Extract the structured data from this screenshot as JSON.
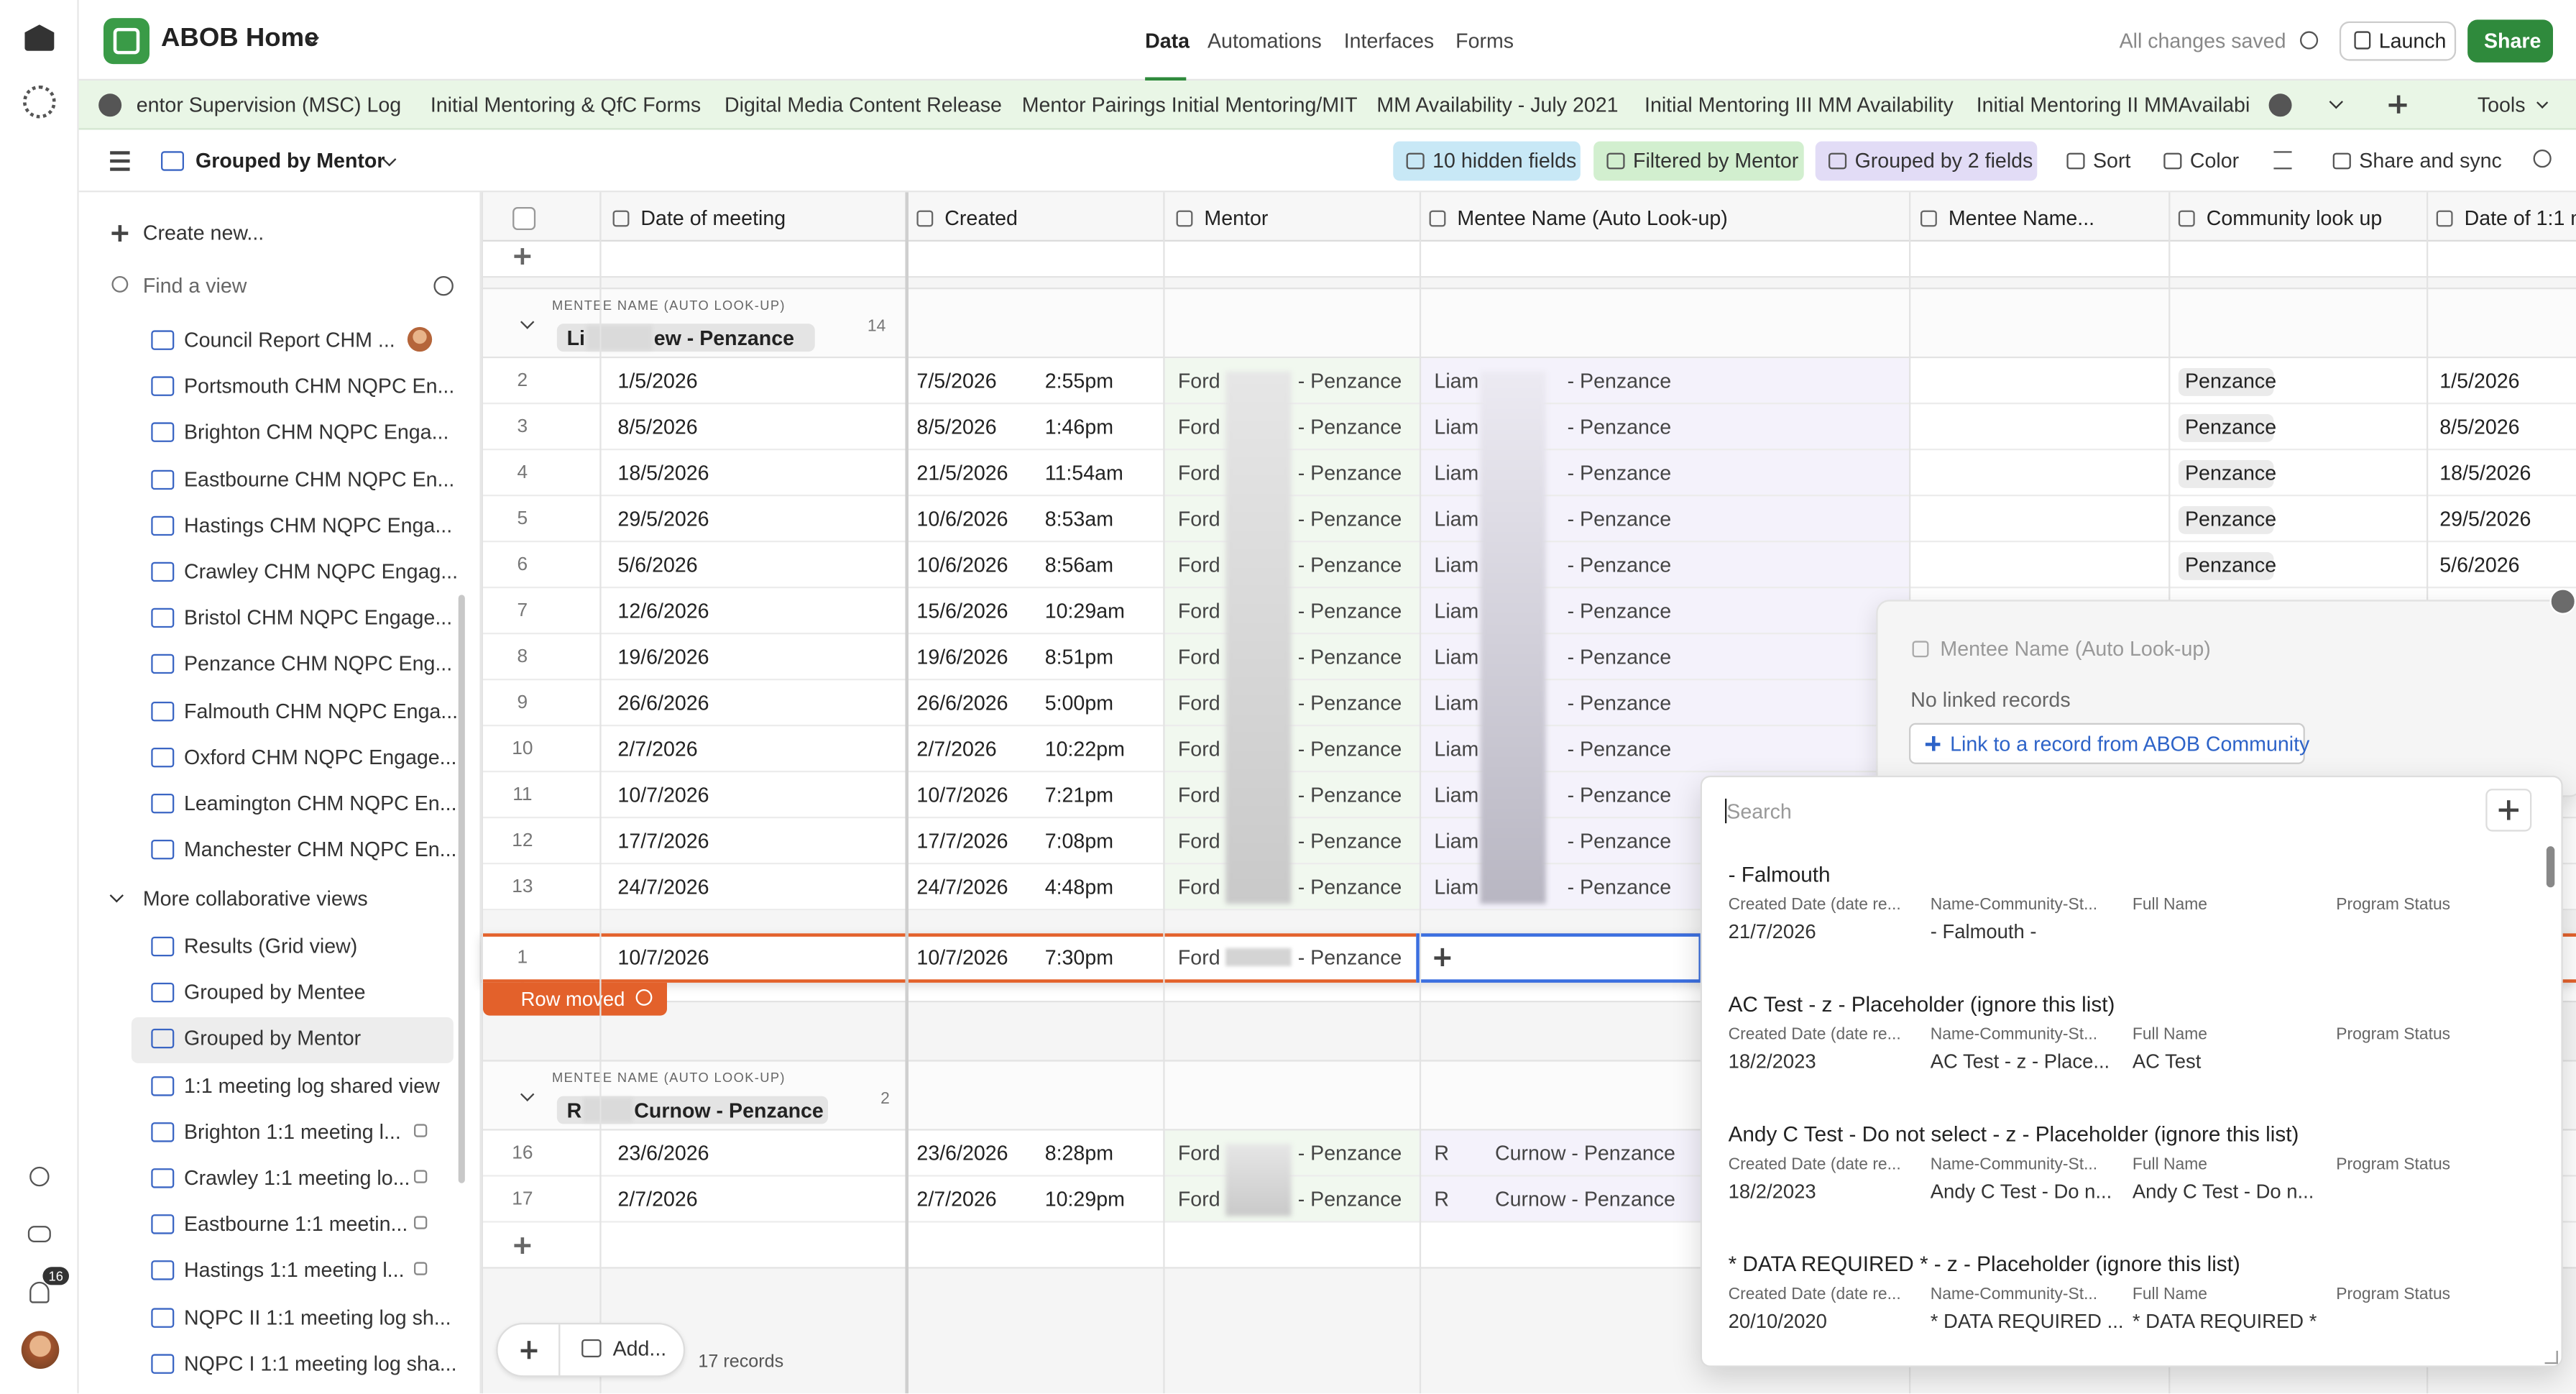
{
  "header": {
    "base_name": "ABOB Home",
    "nav": [
      "Data",
      "Automations",
      "Interfaces",
      "Forms"
    ],
    "status": "All changes saved",
    "launch": "Launch",
    "share": "Share"
  },
  "tables_bar": {
    "tabs": [
      "entor Supervision (MSC) Log",
      "Initial Mentoring & QfC Forms",
      "Digital Media Content Release",
      "Mentor Pairings Initial Mentoring/MIT",
      "MM Availability - July 2021",
      "Initial Mentoring III MM Availability",
      "Initial Mentoring II MMAvailabilit"
    ],
    "tools": "Tools"
  },
  "toolbar": {
    "view": "Grouped by Mentor",
    "buttons": [
      "10 hidden fields",
      "Filtered by Mentor",
      "Grouped by 2 fields",
      "Sort",
      "Color",
      "Share and sync"
    ]
  },
  "left_rail": {
    "notifications": "16"
  },
  "sidebar": {
    "create": "Create new...",
    "find": "Find a view",
    "views": [
      "Council Report CHM ...",
      "Portsmouth CHM NQPC En...",
      "Brighton CHM NQPC Enga...",
      "Eastbourne CHM NQPC En...",
      "Hastings CHM NQPC Enga...",
      "Crawley CHM NQPC Engag...",
      "Bristol CHM NQPC Engage...",
      "Penzance CHM NQPC Eng...",
      "Falmouth CHM NQPC Enga...",
      "Oxford CHM NQPC Engage...",
      "Leamington CHM NQPC En...",
      "Manchester CHM NQPC En..."
    ],
    "section": "More collaborative views",
    "more_views": [
      "Results (Grid view)",
      "Grouped by Mentee",
      "Grouped by Mentor",
      "1:1 meeting log shared view",
      "Brighton 1:1 meeting l...",
      "Crawley 1:1 meeting lo...",
      "Eastbourne 1:1 meetin...",
      "Hastings 1:1 meeting l...",
      "NQPC II 1:1 meeting log sh...",
      "NQPC I 1:1 meeting log sha..."
    ]
  },
  "grid": {
    "columns": [
      "Date of meeting",
      "Created",
      "Mentor",
      "Mentee Name (Auto Look-up)",
      "Mentee Name...",
      "Community look up",
      "Date of 1:1 m"
    ],
    "groups": [
      {
        "label": "MENTEE NAME (AUTO LOOK-UP)",
        "name": [
          "Li",
          "ew - Penzance"
        ],
        "count": "14",
        "rows": [
          {
            "num": "2",
            "date": "1/5/2026",
            "created_date": "7/5/2026",
            "created_time": "2:55pm",
            "mentor": [
              "Ford",
              "- Penzance"
            ],
            "mentee": [
              "Liam",
              "- Penzance"
            ],
            "community": "Penzance",
            "date_1to1": "1/5/2026"
          },
          {
            "num": "3",
            "date": "8/5/2026",
            "created_date": "8/5/2026",
            "created_time": "1:46pm",
            "mentor": [
              "Ford",
              "- Penzance"
            ],
            "mentee": [
              "Liam",
              "- Penzance"
            ],
            "community": "Penzance",
            "date_1to1": "8/5/2026"
          },
          {
            "num": "4",
            "date": "18/5/2026",
            "created_date": "21/5/2026",
            "created_time": "11:54am",
            "mentor": [
              "Ford",
              "- Penzance"
            ],
            "mentee": [
              "Liam",
              "- Penzance"
            ],
            "community": "Penzance",
            "date_1to1": "18/5/2026"
          },
          {
            "num": "5",
            "date": "29/5/2026",
            "created_date": "10/6/2026",
            "created_time": "8:53am",
            "mentor": [
              "Ford",
              "- Penzance"
            ],
            "mentee": [
              "Liam",
              "- Penzance"
            ],
            "community": "Penzance",
            "date_1to1": "29/5/2026"
          },
          {
            "num": "6",
            "date": "5/6/2026",
            "created_date": "10/6/2026",
            "created_time": "8:56am",
            "mentor": [
              "Ford",
              "- Penzance"
            ],
            "mentee": [
              "Liam",
              "- Penzance"
            ],
            "community": "Penzance",
            "date_1to1": "5/6/2026"
          },
          {
            "num": "7",
            "date": "12/6/2026",
            "created_date": "15/6/2026",
            "created_time": "10:29am",
            "mentor": [
              "Ford",
              "- Penzance"
            ],
            "mentee": [
              "Liam",
              "- Penzance"
            ]
          },
          {
            "num": "8",
            "date": "19/6/2026",
            "created_date": "19/6/2026",
            "created_time": "8:51pm",
            "mentor": [
              "Ford",
              "- Penzance"
            ],
            "mentee": [
              "Liam",
              "- Penzance"
            ]
          },
          {
            "num": "9",
            "date": "26/6/2026",
            "created_date": "26/6/2026",
            "created_time": "5:00pm",
            "mentor": [
              "Ford",
              "- Penzance"
            ],
            "mentee": [
              "Liam",
              "- Penzance"
            ]
          },
          {
            "num": "10",
            "date": "2/7/2026",
            "created_date": "2/7/2026",
            "created_time": "10:22pm",
            "mentor": [
              "Ford",
              "- Penzance"
            ],
            "mentee": [
              "Liam",
              "- Penzance"
            ]
          },
          {
            "num": "11",
            "date": "10/7/2026",
            "created_date": "10/7/2026",
            "created_time": "7:21pm",
            "mentor": [
              "Ford",
              "- Penzance"
            ],
            "mentee": [
              "Liam",
              "- Penzance"
            ]
          },
          {
            "num": "12",
            "date": "17/7/2026",
            "created_date": "17/7/2026",
            "created_time": "7:08pm",
            "mentor": [
              "Ford",
              "- Penzance"
            ],
            "mentee": [
              "Liam",
              "- Penzance"
            ]
          },
          {
            "num": "13",
            "date": "24/7/2026",
            "created_date": "24/7/2026",
            "created_time": "4:48pm",
            "mentor": [
              "Ford",
              "- Penzance"
            ],
            "mentee": [
              "Liam",
              "- Penzance"
            ]
          }
        ]
      },
      {
        "label": "MENTEE NAME (AUTO LOOK-UP)",
        "name": [
          "R",
          "Curnow - Penzance"
        ],
        "count": "2",
        "rows": [
          {
            "num": "16",
            "date": "23/6/2026",
            "created_date": "23/6/2026",
            "created_time": "8:28pm",
            "mentor": [
              "Ford",
              "- Penzance"
            ],
            "mentee": [
              "R",
              "Curnow - Penzance"
            ]
          },
          {
            "num": "17",
            "date": "2/7/2026",
            "created_date": "2/7/2026",
            "created_time": "10:29pm",
            "mentor": [
              "Ford",
              "- Penzance"
            ],
            "mentee": [
              "R",
              "Curnow - Penzance"
            ]
          }
        ]
      }
    ],
    "moved_row": {
      "num": "1",
      "date": "10/7/2026",
      "created_date": "10/7/2026",
      "created_time": "7:30pm",
      "mentor": [
        "Ford",
        "- Penzance"
      ]
    },
    "row_moved": "Row moved",
    "add": "Add...",
    "records": "17 records"
  },
  "popup": {
    "field": "Mentee Name (Auto Look-up)",
    "empty": "No linked records",
    "link": "Link to a record from ABOB Community",
    "search": "Search",
    "field_labels": [
      "Created Date (date re...",
      "Name-Community-St...",
      "Full Name",
      "Program Status"
    ],
    "results": [
      {
        "title": "- Falmouth",
        "values": [
          "21/7/2026",
          "- Falmouth -"
        ]
      },
      {
        "title": "AC Test - z - Placeholder (ignore this list)",
        "values": [
          "18/2/2023",
          "AC Test - z - Place...",
          "AC Test"
        ]
      },
      {
        "title": "Andy C Test - Do not select - z - Placeholder (ignore this list)",
        "values": [
          "18/2/2023",
          "Andy C Test - Do n...",
          "Andy C Test - Do n..."
        ]
      },
      {
        "title": "* DATA REQUIRED * - z - Placeholder (ignore this list)",
        "values": [
          "20/10/2020",
          "* DATA REQUIRED ...",
          "* DATA REQUIRED *"
        ]
      }
    ]
  }
}
